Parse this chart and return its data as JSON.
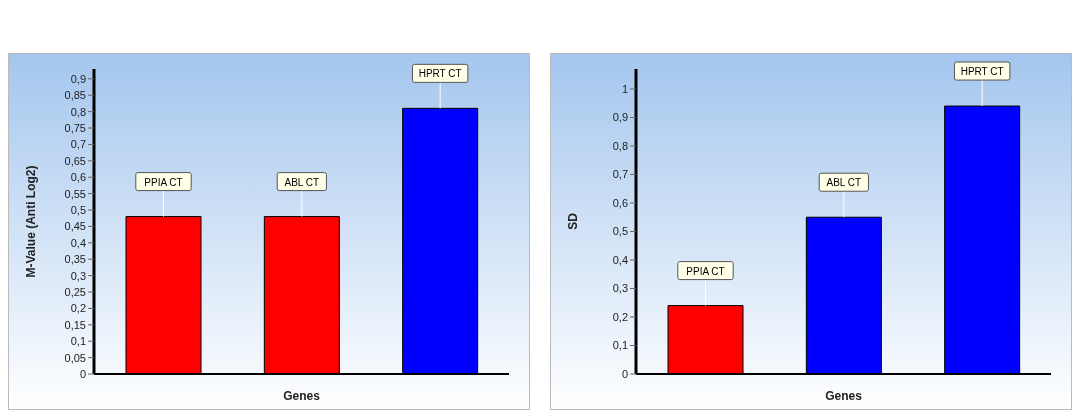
{
  "chart_data": [
    {
      "type": "bar",
      "xlabel": "Genes",
      "ylabel": "M-Value (Anti Log2)",
      "categories": [
        "PPIA CT",
        "ABL CT",
        "HPRT CT"
      ],
      "values": [
        0.48,
        0.48,
        0.81
      ],
      "colors": [
        "#ff0000",
        "#ff0000",
        "#0000ff"
      ],
      "ylim": [
        0,
        0.93
      ],
      "yticks": [
        {
          "value": 0,
          "label": "0"
        },
        {
          "value": 0.05,
          "label": "0,05"
        },
        {
          "value": 0.1,
          "label": "0,1"
        },
        {
          "value": 0.15,
          "label": "0,15"
        },
        {
          "value": 0.2,
          "label": "0,2"
        },
        {
          "value": 0.25,
          "label": "0,25"
        },
        {
          "value": 0.3,
          "label": "0,3"
        },
        {
          "value": 0.35,
          "label": "0,35"
        },
        {
          "value": 0.4,
          "label": "0,4"
        },
        {
          "value": 0.45,
          "label": "0,45"
        },
        {
          "value": 0.5,
          "label": "0,5"
        },
        {
          "value": 0.55,
          "label": "0,55"
        },
        {
          "value": 0.6,
          "label": "0,6"
        },
        {
          "value": 0.65,
          "label": "0,65"
        },
        {
          "value": 0.7,
          "label": "0,7"
        },
        {
          "value": 0.75,
          "label": "0,75"
        },
        {
          "value": 0.8,
          "label": "0,8"
        },
        {
          "value": 0.85,
          "label": "0,85"
        },
        {
          "value": 0.9,
          "label": "0,9"
        }
      ],
      "grid": false,
      "legend": false,
      "tick_labels": "y"
    },
    {
      "type": "bar",
      "xlabel": "Genes",
      "ylabel": "SD",
      "categories": [
        "PPIA CT",
        "ABL CT",
        "HPRT CT"
      ],
      "values": [
        0.24,
        0.55,
        0.94
      ],
      "colors": [
        "#ff0000",
        "#0000ff",
        "#0000ff"
      ],
      "ylim": [
        0,
        1.07
      ],
      "yticks": [
        {
          "value": 0,
          "label": "0"
        },
        {
          "value": 0.1,
          "label": "0,1"
        },
        {
          "value": 0.2,
          "label": "0,2"
        },
        {
          "value": 0.3,
          "label": "0,3"
        },
        {
          "value": 0.4,
          "label": "0,4"
        },
        {
          "value": 0.5,
          "label": "0,5"
        },
        {
          "value": 0.6,
          "label": "0,6"
        },
        {
          "value": 0.7,
          "label": "0,7"
        },
        {
          "value": 0.8,
          "label": "0,8"
        },
        {
          "value": 0.9,
          "label": "0,9"
        },
        {
          "value": 1,
          "label": "1"
        }
      ],
      "grid": false,
      "legend": false,
      "tick_labels": "y"
    }
  ]
}
